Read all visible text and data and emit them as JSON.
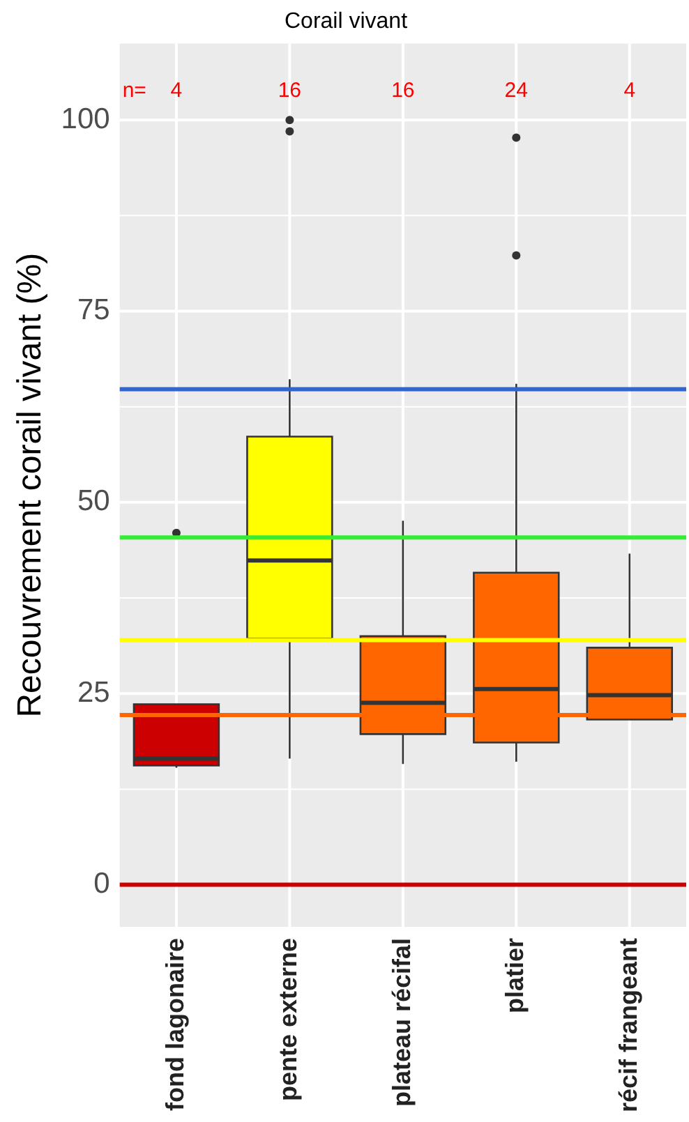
{
  "chart_data": {
    "type": "box",
    "title": "Corail vivant",
    "ylabel": "Recouvrement corail vivant (%)",
    "categories": [
      "fond lagonaire",
      "pente externe",
      "plateau récifal",
      "platier",
      "récif frangeant"
    ],
    "colors": [
      "#cc0000",
      "#ffff00",
      "#ff6600",
      "#ff6600",
      "#ff6600"
    ],
    "boxes": [
      {
        "low": 15.3,
        "q1": 15.6,
        "median": 16.5,
        "q3": 23.6,
        "high": 23.6,
        "outliers": [
          46.0
        ]
      },
      {
        "low": 16.5,
        "q1": 32.2,
        "median": 42.4,
        "q3": 58.6,
        "high": 66.1,
        "outliers": [
          100,
          98.5
        ]
      },
      {
        "low": 15.8,
        "q1": 19.7,
        "median": 23.8,
        "q3": 32.5,
        "high": 47.6
      },
      {
        "low": 16.1,
        "q1": 18.6,
        "median": 25.6,
        "q3": 40.8,
        "high": 65.5,
        "outliers": [
          97.7,
          82.3
        ]
      },
      {
        "low": 21.6,
        "q1": 21.6,
        "median": 24.8,
        "q3": 31.0,
        "high": 43.3
      }
    ],
    "ylim": [
      -5.5,
      110
    ],
    "yticks": [
      0,
      25,
      50,
      75,
      100
    ],
    "grid": true,
    "ref_lines": [
      {
        "axis": "y",
        "value": 64.8,
        "color": "#3366cc"
      },
      {
        "axis": "y",
        "value": 45.4,
        "color": "#33ee33"
      },
      {
        "axis": "y",
        "value": 32.0,
        "color": "#ffff00"
      },
      {
        "axis": "y",
        "value": 22.2,
        "color": "#ff6600"
      },
      {
        "axis": "y",
        "value": 0,
        "color": "#cc0000"
      }
    ],
    "annotations": [
      "n=",
      "4",
      "16",
      "16",
      "24",
      "4"
    ]
  }
}
